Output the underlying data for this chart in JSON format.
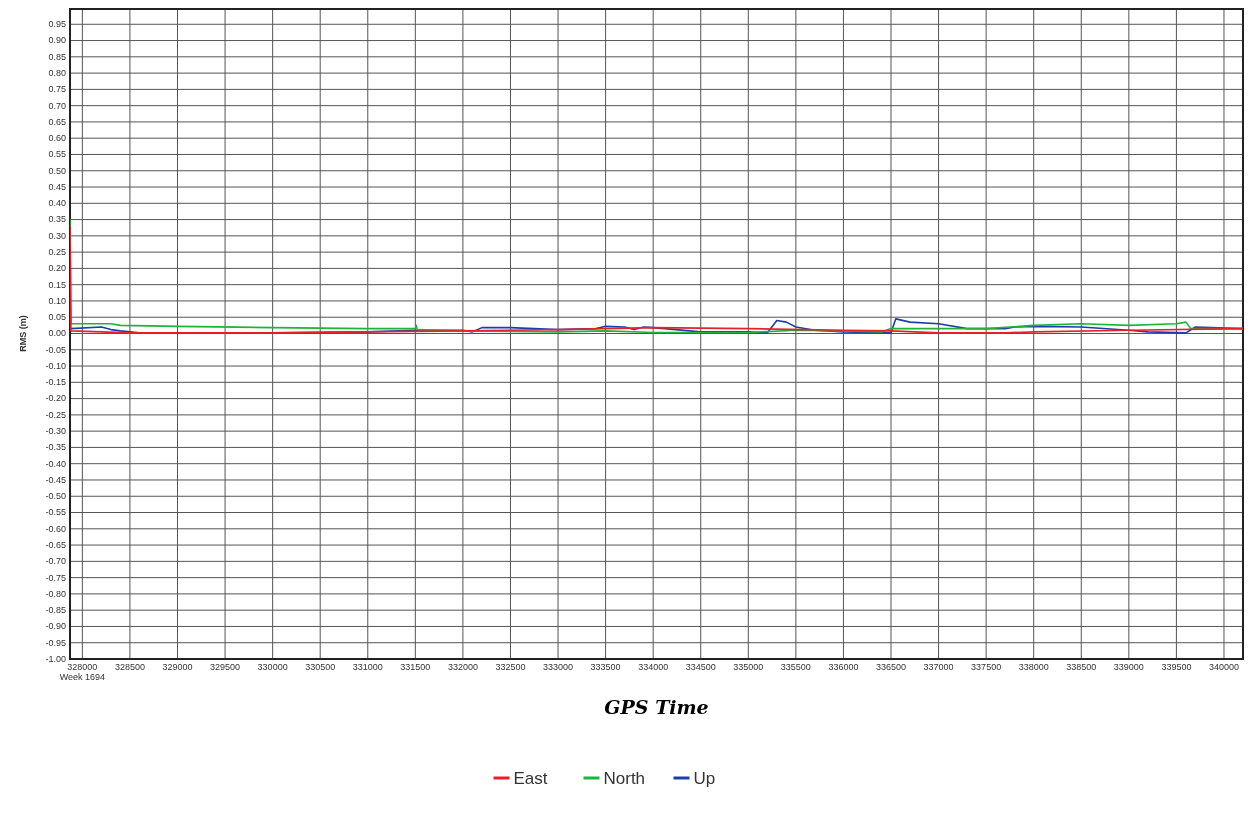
{
  "chart_data": {
    "type": "line",
    "xlabel": "GPS Time",
    "ylabel": "RMS (m)",
    "annotations": [
      "Week 1694"
    ],
    "xlim": [
      327870,
      340200
    ],
    "xticks": [
      328000,
      328500,
      329000,
      329500,
      330000,
      330500,
      331000,
      331500,
      332000,
      332500,
      333000,
      333500,
      334000,
      334500,
      335000,
      335500,
      336000,
      336500,
      337000,
      337500,
      338000,
      338500,
      339000,
      339500,
      340000
    ],
    "ylim": [
      -1,
      1
    ],
    "yticks": [
      {
        "value": -1,
        "label": "-1.00"
      },
      {
        "value": -0.95,
        "label": "-0.95"
      },
      {
        "value": -0.9,
        "label": "-0.90"
      },
      {
        "value": -0.85,
        "label": "-0.85"
      },
      {
        "value": -0.8,
        "label": "-0.80"
      },
      {
        "value": -0.75,
        "label": "-0.75"
      },
      {
        "value": -0.7,
        "label": "-0.70"
      },
      {
        "value": -0.65,
        "label": "-0.65"
      },
      {
        "value": -0.6,
        "label": "-0.60"
      },
      {
        "value": -0.55,
        "label": "-0.55"
      },
      {
        "value": -0.5,
        "label": "-0.50"
      },
      {
        "value": -0.45,
        "label": "-0.45"
      },
      {
        "value": -0.4,
        "label": "-0.40"
      },
      {
        "value": -0.35,
        "label": "-0.35"
      },
      {
        "value": -0.3,
        "label": "-0.30"
      },
      {
        "value": -0.25,
        "label": "-0.25"
      },
      {
        "value": -0.2,
        "label": "-0.20"
      },
      {
        "value": -0.15,
        "label": "-0.15"
      },
      {
        "value": -0.1,
        "label": "-0.10"
      },
      {
        "value": -0.05,
        "label": "-0.05"
      },
      {
        "value": 0,
        "label": "0.00"
      },
      {
        "value": 0.05,
        "label": "0.05"
      },
      {
        "value": 0.1,
        "label": "0.10"
      },
      {
        "value": 0.15,
        "label": "0.15"
      },
      {
        "value": 0.2,
        "label": "0.20"
      },
      {
        "value": 0.25,
        "label": "0.25"
      },
      {
        "value": 0.3,
        "label": "0.30"
      },
      {
        "value": 0.35,
        "label": "0.35"
      },
      {
        "value": 0.4,
        "label": "0.40"
      },
      {
        "value": 0.45,
        "label": "0.45"
      },
      {
        "value": 0.5,
        "label": "0.50"
      },
      {
        "value": 0.55,
        "label": "0.55"
      },
      {
        "value": 0.6,
        "label": "0.60"
      },
      {
        "value": 0.65,
        "label": "0.65"
      },
      {
        "value": 0.7,
        "label": "0.70"
      },
      {
        "value": 0.75,
        "label": "0.75"
      },
      {
        "value": 0.8,
        "label": "0.80"
      },
      {
        "value": 0.85,
        "label": "0.85"
      },
      {
        "value": 0.9,
        "label": "0.90"
      },
      {
        "value": 0.95,
        "label": "0.95"
      }
    ],
    "grid": true,
    "legend": "bottom",
    "marker": "none",
    "line_style": "solid",
    "series": [
      {
        "name": "East",
        "color": "#e8202a",
        "x": [
          327870,
          327880,
          328200,
          328500,
          330000,
          331000,
          332000,
          333000,
          334000,
          335000,
          336000,
          336500,
          337000,
          337700,
          338000,
          339000,
          340200
        ],
        "values": [
          0.33,
          0.008,
          0.005,
          0.002,
          0.002,
          0.005,
          0.008,
          0.012,
          0.018,
          0.015,
          0.01,
          0.008,
          0.002,
          0.002,
          0.005,
          0.01,
          0.015
        ]
      },
      {
        "name": "North",
        "color": "#1fb33a",
        "x": [
          327870,
          327880,
          328300,
          328400,
          329000,
          330000,
          331000,
          331500,
          331510,
          331520,
          332000,
          333000,
          333500,
          334000,
          335000,
          335500,
          336000,
          336400,
          336500,
          337500,
          338000,
          338500,
          339000,
          339500,
          339600,
          339650,
          340200
        ],
        "values": [
          0.35,
          0.03,
          0.03,
          0.025,
          0.022,
          0.018,
          0.015,
          0.015,
          0.025,
          0.012,
          0.008,
          0.005,
          0.008,
          0.003,
          0.003,
          0.01,
          0.008,
          0.005,
          0.015,
          0.015,
          0.025,
          0.03,
          0.025,
          0.03,
          0.035,
          0.015,
          0.015
        ]
      },
      {
        "name": "Up",
        "color": "#1a3fa8",
        "x": [
          327880,
          328200,
          328300,
          328400,
          328600,
          330000,
          331000,
          331500,
          332000,
          332100,
          332200,
          332500,
          333000,
          333400,
          333500,
          333700,
          333800,
          333900,
          334000,
          334500,
          335000,
          335200,
          335300,
          335400,
          335500,
          335700,
          336000,
          336500,
          336550,
          336700,
          337000,
          337300,
          337700,
          337800,
          338000,
          338500,
          339000,
          339200,
          339600,
          339700,
          340200
        ],
        "values": [
          0.015,
          0.02,
          0.012,
          0.008,
          0.002,
          0.002,
          0.005,
          0.01,
          0.01,
          0.005,
          0.018,
          0.018,
          0.012,
          0.015,
          0.022,
          0.02,
          0.012,
          0.02,
          0.018,
          0.005,
          0.005,
          0.002,
          0.04,
          0.035,
          0.02,
          0.01,
          0.005,
          0.002,
          0.045,
          0.035,
          0.03,
          0.015,
          0.015,
          0.02,
          0.022,
          0.02,
          0.01,
          0.005,
          0.002,
          0.02,
          0.015
        ]
      }
    ]
  }
}
